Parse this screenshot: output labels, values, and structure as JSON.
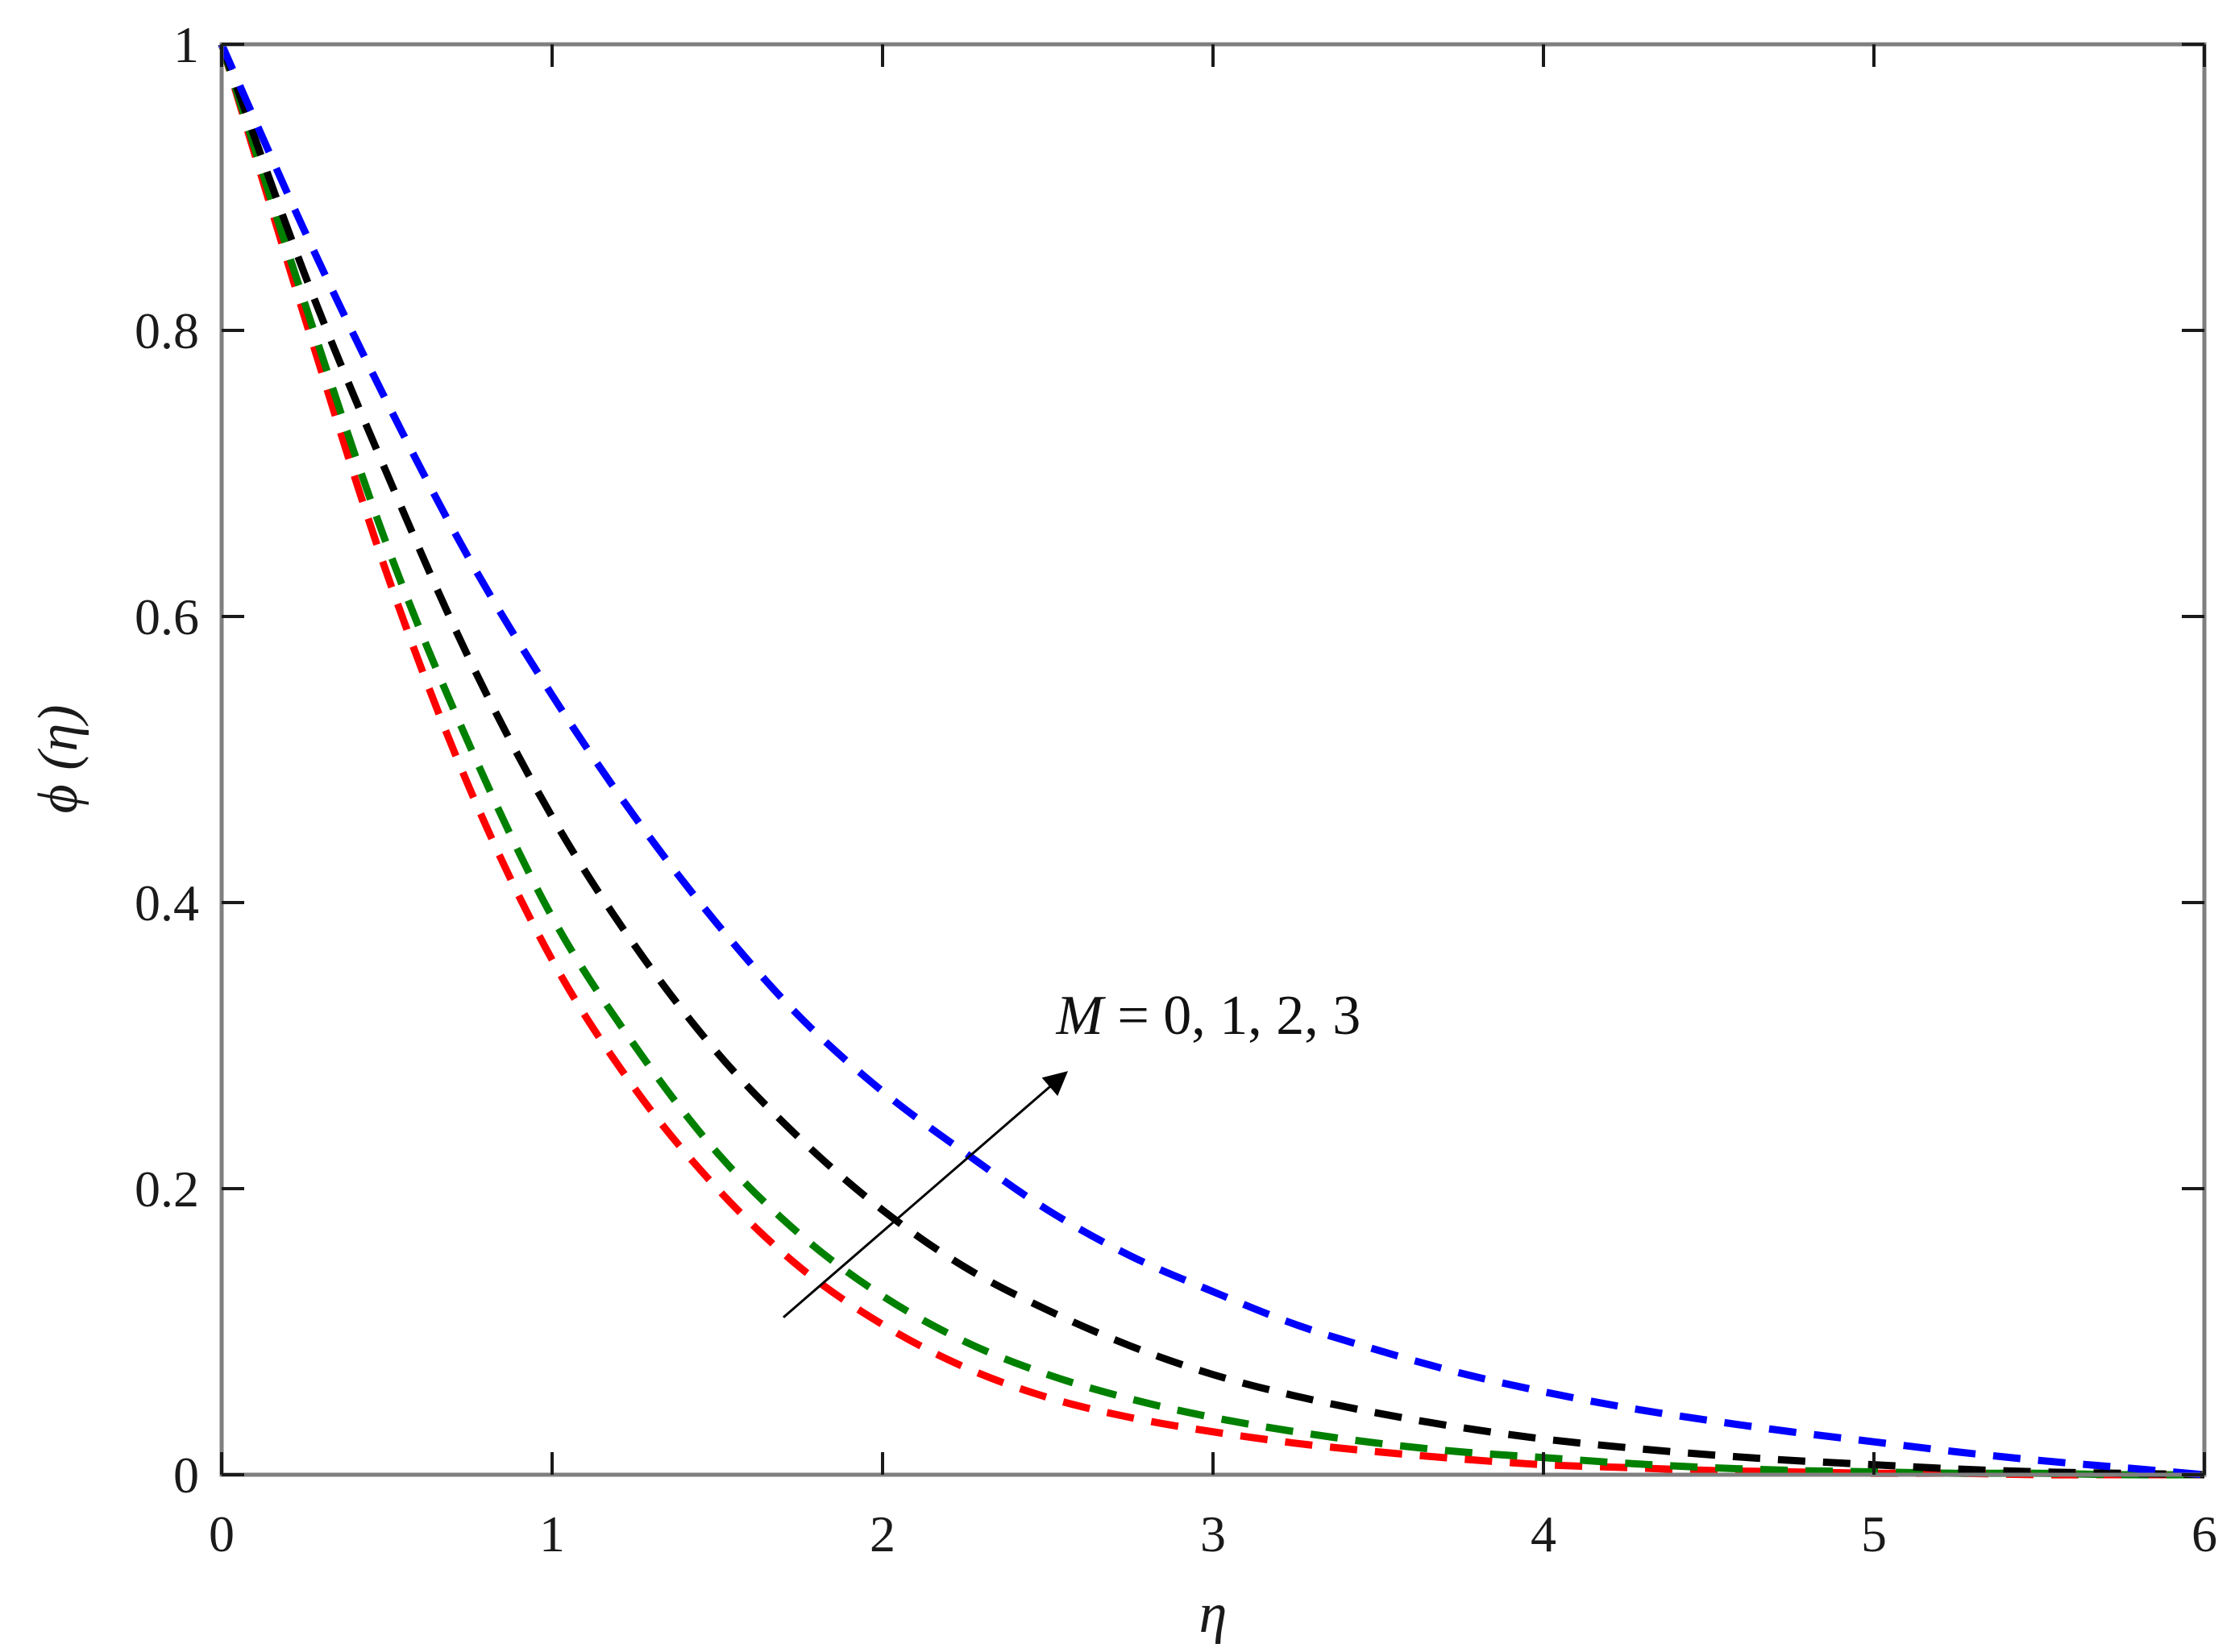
{
  "chart_data": {
    "type": "line",
    "title": "",
    "xlabel": "η",
    "ylabel": "ϕ (η)",
    "xlim": [
      0,
      6
    ],
    "ylim": [
      0,
      1
    ],
    "xticks": [
      0,
      1,
      2,
      3,
      4,
      5,
      6
    ],
    "yticks": [
      0,
      0.2,
      0.4,
      0.6,
      0.8,
      1
    ],
    "xtick_labels": [
      "0",
      "1",
      "2",
      "3",
      "4",
      "5",
      "6"
    ],
    "ytick_labels": [
      "0",
      "0.2",
      "0.4",
      "0.6",
      "0.8",
      "1"
    ],
    "grid": false,
    "line_style": "dashed",
    "x": [
      0,
      0.25,
      0.5,
      0.75,
      1,
      1.25,
      1.5,
      1.75,
      2,
      2.25,
      2.5,
      2.75,
      3,
      3.25,
      3.5,
      3.75,
      4,
      4.25,
      4.5,
      4.75,
      5,
      5.25,
      5.5,
      5.75,
      6
    ],
    "series": [
      {
        "color": "#ff0000",
        "values": [
          1,
          0.81,
          0.63,
          0.48,
          0.36,
          0.27,
          0.2,
          0.145,
          0.105,
          0.075,
          0.054,
          0.04,
          0.03,
          0.022,
          0.016,
          0.011,
          0.007,
          0.005,
          0.003,
          0.002,
          0.001,
          0.001,
          0,
          0,
          0
        ]
      },
      {
        "color": "#008000",
        "values": [
          1,
          0.82,
          0.65,
          0.51,
          0.39,
          0.3,
          0.225,
          0.168,
          0.125,
          0.093,
          0.07,
          0.053,
          0.04,
          0.03,
          0.022,
          0.016,
          0.012,
          0.008,
          0.005,
          0.003,
          0.002,
          0.001,
          0.001,
          0,
          0
        ]
      },
      {
        "color": "#000000",
        "values": [
          1,
          0.84,
          0.7,
          0.57,
          0.46,
          0.37,
          0.295,
          0.235,
          0.185,
          0.145,
          0.115,
          0.09,
          0.07,
          0.055,
          0.043,
          0.033,
          0.025,
          0.019,
          0.014,
          0.01,
          0.007,
          0.004,
          0.002,
          0.001,
          0
        ]
      },
      {
        "color": "#0000ff",
        "values": [
          1,
          0.87,
          0.75,
          0.64,
          0.545,
          0.46,
          0.385,
          0.32,
          0.268,
          0.225,
          0.185,
          0.153,
          0.128,
          0.105,
          0.087,
          0.071,
          0.058,
          0.047,
          0.038,
          0.03,
          0.023,
          0.016,
          0.01,
          0.005,
          0
        ]
      }
    ],
    "annotations": [
      {
        "text": "M = 0, 1, 2, 3",
        "arrow_from": [
          1.7,
          0.11
        ],
        "arrow_to": [
          2.55,
          0.28
        ]
      }
    ],
    "legend": "none"
  }
}
